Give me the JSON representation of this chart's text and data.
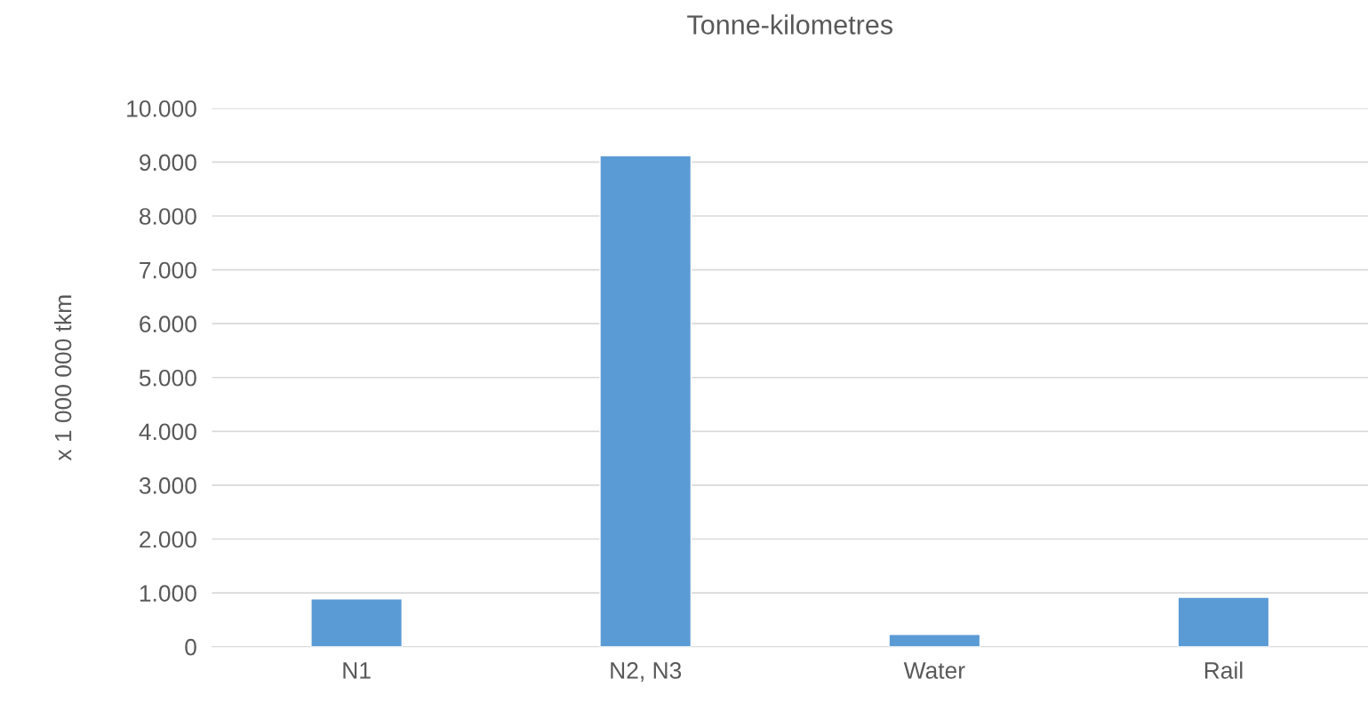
{
  "chart_data": {
    "type": "bar",
    "title": "Tonne-kilometres",
    "ylabel": "x 1 000 000 tkm",
    "categories": [
      "N1",
      "N2, N3",
      "Water",
      "Rail"
    ],
    "values": [
      890,
      9120,
      230,
      920
    ],
    "color": "#5b9bd5",
    "ylim": [
      0,
      10000
    ],
    "yticks": [
      {
        "value": 0,
        "label": "0"
      },
      {
        "value": 1000,
        "label": "1.000"
      },
      {
        "value": 2000,
        "label": "2.000"
      },
      {
        "value": 3000,
        "label": "3.000"
      },
      {
        "value": 4000,
        "label": "4.000"
      },
      {
        "value": 5000,
        "label": "5.000"
      },
      {
        "value": 6000,
        "label": "6.000"
      },
      {
        "value": 7000,
        "label": "7.000"
      },
      {
        "value": 8000,
        "label": "8.000"
      },
      {
        "value": 9000,
        "label": "9.000"
      },
      {
        "value": 10000,
        "label": "10.000"
      }
    ],
    "grid": "y",
    "legend": false
  }
}
